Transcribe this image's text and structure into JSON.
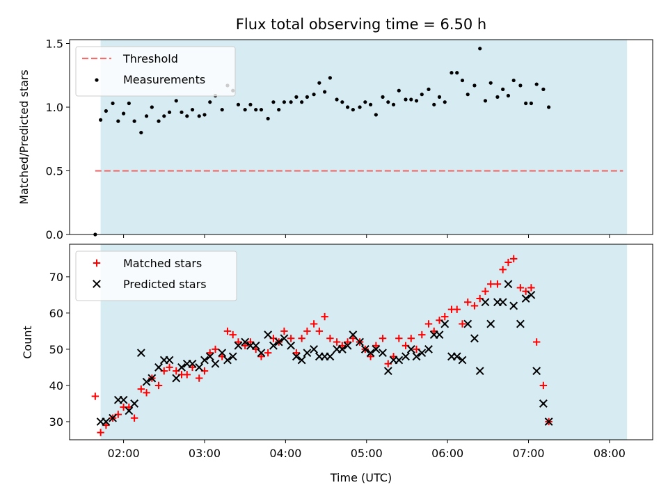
{
  "title": "Flux total observing time = 6.50 h",
  "chart_data": [
    {
      "type": "scatter",
      "ylabel": "Matched/Predicted stars",
      "xlabel": "",
      "xlim": [
        "01:20",
        "08:32"
      ],
      "ylim": [
        0,
        1.53
      ],
      "yticks": [
        0.0,
        0.5,
        1.0,
        1.5
      ],
      "ytick_labels": [
        "0.0",
        "0.5",
        "1.0",
        "1.5"
      ],
      "shaded_span": [
        "01:43",
        "08:13"
      ],
      "legend_position": "upper-left",
      "threshold": {
        "name": "Threshold",
        "value": 0.5,
        "x_range": [
          "01:39",
          "08:10"
        ],
        "color": "#f07070"
      },
      "series": [
        {
          "name": "Measurements",
          "color": "#000000",
          "marker": "dot",
          "points": [
            [
              "01:39",
              0.0
            ],
            [
              "01:43",
              0.9
            ],
            [
              "01:47",
              0.97
            ],
            [
              "01:52",
              1.03
            ],
            [
              "01:56",
              0.89
            ],
            [
              "02:00",
              0.95
            ],
            [
              "02:04",
              1.03
            ],
            [
              "02:08",
              0.89
            ],
            [
              "02:13",
              0.8
            ],
            [
              "02:17",
              0.93
            ],
            [
              "02:21",
              1.0
            ],
            [
              "02:26",
              0.89
            ],
            [
              "02:30",
              0.93
            ],
            [
              "02:34",
              0.96
            ],
            [
              "02:39",
              1.05
            ],
            [
              "02:43",
              0.96
            ],
            [
              "02:47",
              0.93
            ],
            [
              "02:51",
              0.98
            ],
            [
              "02:56",
              0.93
            ],
            [
              "03:00",
              0.94
            ],
            [
              "03:04",
              1.04
            ],
            [
              "03:08",
              1.09
            ],
            [
              "03:13",
              0.98
            ],
            [
              "03:17",
              1.17
            ],
            [
              "03:21",
              1.13
            ],
            [
              "03:25",
              1.02
            ],
            [
              "03:30",
              0.98
            ],
            [
              "03:34",
              1.02
            ],
            [
              "03:38",
              0.98
            ],
            [
              "03:42",
              0.98
            ],
            [
              "03:47",
              0.91
            ],
            [
              "03:51",
              1.04
            ],
            [
              "03:55",
              0.98
            ],
            [
              "03:59",
              1.04
            ],
            [
              "04:04",
              1.04
            ],
            [
              "04:08",
              1.08
            ],
            [
              "04:12",
              1.04
            ],
            [
              "04:16",
              1.08
            ],
            [
              "04:21",
              1.1
            ],
            [
              "04:25",
              1.19
            ],
            [
              "04:29",
              1.12
            ],
            [
              "04:33",
              1.23
            ],
            [
              "04:38",
              1.06
            ],
            [
              "04:42",
              1.04
            ],
            [
              "04:46",
              1.0
            ],
            [
              "04:50",
              0.98
            ],
            [
              "04:55",
              1.0
            ],
            [
              "04:59",
              1.04
            ],
            [
              "05:03",
              1.02
            ],
            [
              "05:07",
              0.94
            ],
            [
              "05:12",
              1.08
            ],
            [
              "05:16",
              1.04
            ],
            [
              "05:20",
              1.02
            ],
            [
              "05:24",
              1.13
            ],
            [
              "05:29",
              1.06
            ],
            [
              "05:33",
              1.06
            ],
            [
              "05:37",
              1.05
            ],
            [
              "05:41",
              1.1
            ],
            [
              "05:46",
              1.14
            ],
            [
              "05:50",
              1.02
            ],
            [
              "05:54",
              1.08
            ],
            [
              "05:58",
              1.04
            ],
            [
              "06:03",
              1.27
            ],
            [
              "06:07",
              1.27
            ],
            [
              "06:11",
              1.21
            ],
            [
              "06:15",
              1.1
            ],
            [
              "06:20",
              1.17
            ],
            [
              "06:24",
              1.46
            ],
            [
              "06:28",
              1.05
            ],
            [
              "06:32",
              1.19
            ],
            [
              "06:37",
              1.08
            ],
            [
              "06:41",
              1.14
            ],
            [
              "06:45",
              1.09
            ],
            [
              "06:49",
              1.21
            ],
            [
              "06:54",
              1.17
            ],
            [
              "06:58",
              1.03
            ],
            [
              "07:02",
              1.03
            ],
            [
              "07:06",
              1.18
            ],
            [
              "07:11",
              1.14
            ],
            [
              "07:15",
              1.0
            ]
          ]
        }
      ]
    },
    {
      "type": "scatter",
      "ylabel": "Count",
      "xlabel": "Time (UTC)",
      "xlim": [
        "01:20",
        "08:32"
      ],
      "ylim": [
        25,
        79
      ],
      "yticks": [
        30,
        40,
        50,
        60,
        70
      ],
      "ytick_labels": [
        "30",
        "40",
        "50",
        "60",
        "70"
      ],
      "xticks": [
        "02:00",
        "03:00",
        "04:00",
        "05:00",
        "06:00",
        "07:00",
        "08:00"
      ],
      "shaded_span": [
        "01:43",
        "08:13"
      ],
      "legend_position": "upper-left",
      "series": [
        {
          "name": "Matched stars",
          "color": "#ff0000",
          "marker": "plus",
          "points": [
            [
              "01:39",
              37
            ],
            [
              "01:43",
              27
            ],
            [
              "01:47",
              29
            ],
            [
              "01:52",
              31
            ],
            [
              "01:56",
              32
            ],
            [
              "02:00",
              34
            ],
            [
              "02:04",
              34
            ],
            [
              "02:08",
              31
            ],
            [
              "02:13",
              39
            ],
            [
              "02:17",
              38
            ],
            [
              "02:21",
              42
            ],
            [
              "02:26",
              40
            ],
            [
              "02:30",
              44
            ],
            [
              "02:34",
              45
            ],
            [
              "02:39",
              44
            ],
            [
              "02:43",
              43
            ],
            [
              "02:47",
              43
            ],
            [
              "02:51",
              45
            ],
            [
              "02:56",
              42
            ],
            [
              "03:00",
              44
            ],
            [
              "03:04",
              49
            ],
            [
              "03:08",
              50
            ],
            [
              "03:13",
              48
            ],
            [
              "03:17",
              55
            ],
            [
              "03:21",
              54
            ],
            [
              "03:25",
              52
            ],
            [
              "03:30",
              51
            ],
            [
              "03:34",
              52
            ],
            [
              "03:38",
              50
            ],
            [
              "03:42",
              48
            ],
            [
              "03:47",
              49
            ],
            [
              "03:51",
              53
            ],
            [
              "03:55",
              52
            ],
            [
              "03:59",
              55
            ],
            [
              "04:04",
              53
            ],
            [
              "04:08",
              49
            ],
            [
              "04:12",
              53
            ],
            [
              "04:16",
              55
            ],
            [
              "04:21",
              57
            ],
            [
              "04:25",
              55
            ],
            [
              "04:29",
              59
            ],
            [
              "04:33",
              53
            ],
            [
              "04:38",
              52
            ],
            [
              "04:42",
              51
            ],
            [
              "04:46",
              52
            ],
            [
              "04:50",
              53
            ],
            [
              "04:55",
              52
            ],
            [
              "04:59",
              50
            ],
            [
              "05:03",
              48
            ],
            [
              "05:07",
              51
            ],
            [
              "05:12",
              53
            ],
            [
              "05:16",
              46
            ],
            [
              "05:20",
              48
            ],
            [
              "05:24",
              53
            ],
            [
              "05:29",
              51
            ],
            [
              "05:33",
              53
            ],
            [
              "05:37",
              50
            ],
            [
              "05:41",
              54
            ],
            [
              "05:46",
              57
            ],
            [
              "05:50",
              55
            ],
            [
              "05:54",
              58
            ],
            [
              "05:58",
              59
            ],
            [
              "06:03",
              61
            ],
            [
              "06:07",
              61
            ],
            [
              "06:11",
              57
            ],
            [
              "06:15",
              63
            ],
            [
              "06:20",
              62
            ],
            [
              "06:24",
              64
            ],
            [
              "06:28",
              66
            ],
            [
              "06:32",
              68
            ],
            [
              "06:37",
              68
            ],
            [
              "06:41",
              72
            ],
            [
              "06:45",
              74
            ],
            [
              "06:49",
              75
            ],
            [
              "06:54",
              67
            ],
            [
              "06:58",
              66
            ],
            [
              "07:02",
              67
            ],
            [
              "07:06",
              52
            ],
            [
              "07:11",
              40
            ],
            [
              "07:15",
              30
            ]
          ]
        },
        {
          "name": "Predicted stars",
          "color": "#000000",
          "marker": "x",
          "points": [
            [
              "01:43",
              30
            ],
            [
              "01:47",
              30
            ],
            [
              "01:52",
              31
            ],
            [
              "01:56",
              36
            ],
            [
              "02:00",
              36
            ],
            [
              "02:04",
              33
            ],
            [
              "02:08",
              35
            ],
            [
              "02:13",
              49
            ],
            [
              "02:17",
              41
            ],
            [
              "02:21",
              42
            ],
            [
              "02:26",
              45
            ],
            [
              "02:30",
              47
            ],
            [
              "02:34",
              47
            ],
            [
              "02:39",
              42
            ],
            [
              "02:43",
              45
            ],
            [
              "02:47",
              46
            ],
            [
              "02:51",
              46
            ],
            [
              "02:56",
              45
            ],
            [
              "03:00",
              47
            ],
            [
              "03:04",
              48
            ],
            [
              "03:08",
              46
            ],
            [
              "03:13",
              49
            ],
            [
              "03:17",
              47
            ],
            [
              "03:21",
              48
            ],
            [
              "03:25",
              51
            ],
            [
              "03:30",
              52
            ],
            [
              "03:34",
              51
            ],
            [
              "03:38",
              51
            ],
            [
              "03:42",
              49
            ],
            [
              "03:47",
              54
            ],
            [
              "03:51",
              51
            ],
            [
              "03:55",
              52
            ],
            [
              "03:59",
              53
            ],
            [
              "04:04",
              51
            ],
            [
              "04:08",
              48
            ],
            [
              "04:12",
              47
            ],
            [
              "04:16",
              49
            ],
            [
              "04:21",
              50
            ],
            [
              "04:25",
              48
            ],
            [
              "04:29",
              48
            ],
            [
              "04:33",
              48
            ],
            [
              "04:38",
              50
            ],
            [
              "04:42",
              50
            ],
            [
              "04:46",
              51
            ],
            [
              "04:50",
              54
            ],
            [
              "04:55",
              52
            ],
            [
              "04:59",
              50
            ],
            [
              "05:03",
              49
            ],
            [
              "05:07",
              50
            ],
            [
              "05:12",
              49
            ],
            [
              "05:16",
              44
            ],
            [
              "05:20",
              47
            ],
            [
              "05:24",
              47
            ],
            [
              "05:29",
              48
            ],
            [
              "05:33",
              50
            ],
            [
              "05:37",
              48
            ],
            [
              "05:41",
              49
            ],
            [
              "05:46",
              50
            ],
            [
              "05:50",
              54
            ],
            [
              "05:54",
              54
            ],
            [
              "05:58",
              57
            ],
            [
              "06:03",
              48
            ],
            [
              "06:07",
              48
            ],
            [
              "06:11",
              47
            ],
            [
              "06:15",
              57
            ],
            [
              "06:20",
              53
            ],
            [
              "06:24",
              44
            ],
            [
              "06:28",
              63
            ],
            [
              "06:32",
              57
            ],
            [
              "06:37",
              63
            ],
            [
              "06:41",
              63
            ],
            [
              "06:45",
              68
            ],
            [
              "06:49",
              62
            ],
            [
              "06:54",
              57
            ],
            [
              "06:58",
              64
            ],
            [
              "07:02",
              65
            ],
            [
              "07:06",
              44
            ],
            [
              "07:11",
              35
            ],
            [
              "07:15",
              30
            ]
          ]
        }
      ]
    }
  ]
}
